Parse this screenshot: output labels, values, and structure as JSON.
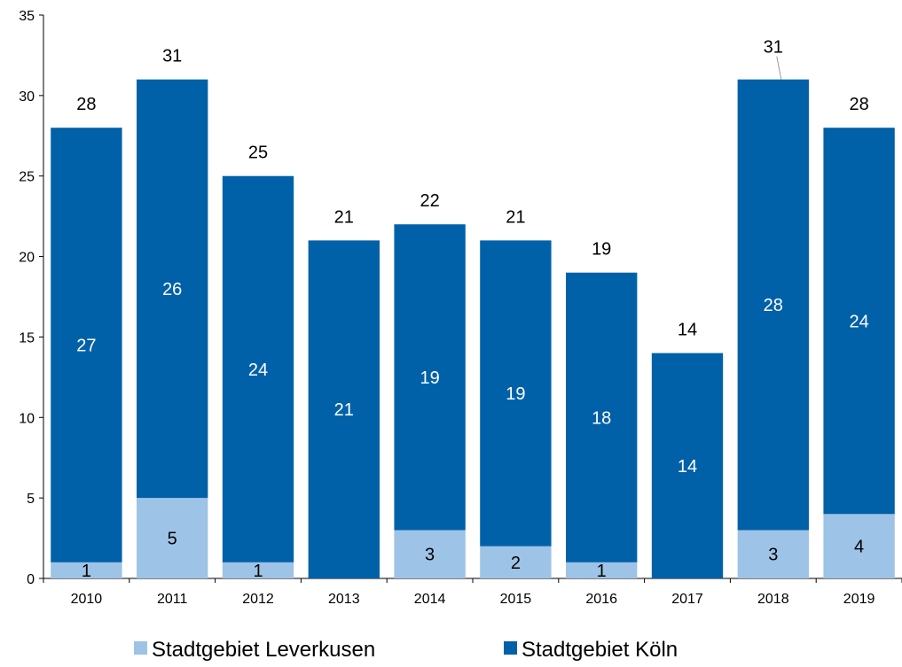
{
  "chart_data": {
    "type": "bar",
    "stacked": true,
    "categories": [
      "2010",
      "2011",
      "2012",
      "2013",
      "2014",
      "2015",
      "2016",
      "2017",
      "2018",
      "2019"
    ],
    "series": [
      {
        "name": "Stadtgebiet Leverkusen",
        "color": "#9dc3e6",
        "values": [
          1,
          5,
          1,
          0,
          3,
          2,
          1,
          0,
          3,
          4
        ]
      },
      {
        "name": "Stadtgebiet Köln",
        "color": "#0061a8",
        "values": [
          27,
          26,
          24,
          21,
          19,
          19,
          18,
          14,
          28,
          24
        ]
      }
    ],
    "totals": [
      28,
      31,
      25,
      21,
      22,
      21,
      19,
      14,
      31,
      28
    ],
    "yticks": [
      "0",
      "5",
      "10",
      "15",
      "20",
      "25",
      "30",
      "35"
    ],
    "ylim": [
      0,
      35
    ],
    "grid": false,
    "legend_position": "bottom"
  }
}
